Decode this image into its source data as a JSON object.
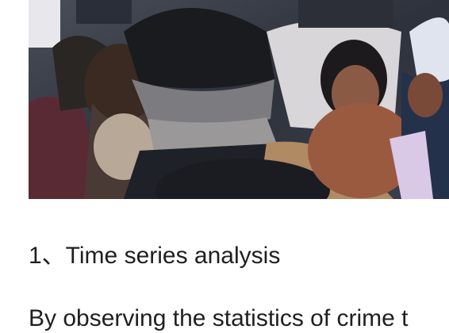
{
  "article": {
    "image": {
      "kind": "photo",
      "subject": "crowd-of-people"
    },
    "section_heading": "1、Time series analysis",
    "paragraph": "By observing the statistics of crime t"
  }
}
